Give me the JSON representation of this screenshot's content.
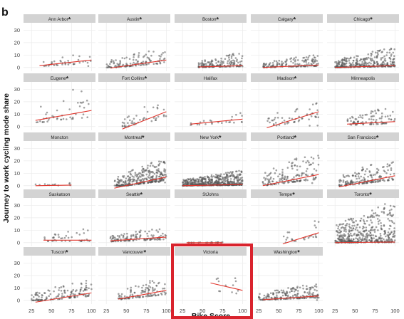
{
  "panel_label": "b",
  "ylabel": "Journey to work cycling mode share",
  "xlabel": "Bike Score",
  "x_ticks": [
    "25",
    "50",
    "75",
    "100"
  ],
  "y_ticks": [
    "0",
    "10",
    "20",
    "30"
  ],
  "star_symbol": "*",
  "highlight_color": "#d9232d",
  "fit_line_color": "#e0342b",
  "point_color": "#555555",
  "strip_color": "#d3d3d3",
  "chart_data": {
    "type": "scatter",
    "xlabel": "Bike Score",
    "ylabel": "Journey to work cycling mode share",
    "xlim": [
      15,
      105
    ],
    "ylim": [
      -3,
      36
    ],
    "grid": true,
    "layout_grid": {
      "cols": 5,
      "rows": 5
    },
    "highlighted_panel": "Victoria",
    "panels": [
      {
        "name": "Ann Arbor",
        "star": true,
        "fit": [
          [
            35,
            1.5
          ],
          [
            100,
            6
          ]
        ],
        "x_range": [
          35,
          100
        ],
        "y_max": 10,
        "n": 40
      },
      {
        "name": "Austin",
        "star": true,
        "fit": [
          [
            30,
            -0.5
          ],
          [
            100,
            6
          ]
        ],
        "x_range": [
          25,
          100
        ],
        "y_max": 14,
        "n": 120
      },
      {
        "name": "Boston",
        "star": true,
        "fit": [
          [
            45,
            0.4
          ],
          [
            100,
            1.5
          ]
        ],
        "x_range": [
          45,
          100
        ],
        "y_max": 12,
        "n": 160
      },
      {
        "name": "Calgary",
        "star": true,
        "fit": [
          [
            30,
            0
          ],
          [
            100,
            2
          ]
        ],
        "x_range": [
          30,
          100
        ],
        "y_max": 10,
        "n": 150
      },
      {
        "name": "Chicago",
        "star": true,
        "fit": [
          [
            25,
            0
          ],
          [
            100,
            1.5
          ]
        ],
        "x_range": [
          25,
          100
        ],
        "y_max": 16,
        "n": 320
      },
      {
        "name": "Eugene",
        "star": true,
        "fit": [
          [
            30,
            5
          ],
          [
            100,
            13
          ]
        ],
        "x_range": [
          30,
          100
        ],
        "y_max": 30,
        "n": 45
      },
      {
        "name": "Fort Collins",
        "star": true,
        "fit": [
          [
            45,
            -2
          ],
          [
            100,
            12
          ]
        ],
        "x_range": [
          45,
          100
        ],
        "y_max": 20,
        "n": 45
      },
      {
        "name": "Halifax",
        "star": false,
        "fit": [
          [
            35,
            2
          ],
          [
            100,
            6
          ]
        ],
        "x_range": [
          35,
          100
        ],
        "y_max": 11,
        "n": 25
      },
      {
        "name": "Madison",
        "star": true,
        "fit": [
          [
            35,
            -1
          ],
          [
            100,
            12
          ]
        ],
        "x_range": [
          35,
          100
        ],
        "y_max": 20,
        "n": 55
      },
      {
        "name": "Minneapolis",
        "star": false,
        "fit": [
          [
            40,
            2
          ],
          [
            100,
            4
          ]
        ],
        "x_range": [
          40,
          100
        ],
        "y_max": 15,
        "n": 90
      },
      {
        "name": "Moncton",
        "star": false,
        "fit": [
          [
            30,
            0
          ],
          [
            75,
            0.5
          ]
        ],
        "x_range": [
          30,
          75
        ],
        "y_max": 3,
        "n": 12
      },
      {
        "name": "Montreal",
        "star": true,
        "fit": [
          [
            35,
            -2
          ],
          [
            100,
            7
          ]
        ],
        "x_range": [
          35,
          100
        ],
        "y_max": 20,
        "n": 300
      },
      {
        "name": "New York",
        "star": true,
        "fit": [
          [
            25,
            0
          ],
          [
            100,
            1
          ]
        ],
        "x_range": [
          25,
          100
        ],
        "y_max": 12,
        "n": 520
      },
      {
        "name": "Portland",
        "star": true,
        "fit": [
          [
            30,
            0
          ],
          [
            100,
            9
          ]
        ],
        "x_range": [
          30,
          100
        ],
        "y_max": 25,
        "n": 150
      },
      {
        "name": "San Francisco",
        "star": true,
        "fit": [
          [
            30,
            -1
          ],
          [
            100,
            8
          ]
        ],
        "x_range": [
          30,
          100
        ],
        "y_max": 20,
        "n": 170
      },
      {
        "name": "Saskatoon",
        "star": false,
        "fit": [
          [
            40,
            2
          ],
          [
            100,
            2
          ]
        ],
        "x_range": [
          40,
          100
        ],
        "y_max": 11,
        "n": 40
      },
      {
        "name": "Seattle",
        "star": true,
        "fit": [
          [
            30,
            1.5
          ],
          [
            100,
            4.5
          ]
        ],
        "x_range": [
          30,
          100
        ],
        "y_max": 11,
        "n": 120
      },
      {
        "name": "StJohns",
        "star": false,
        "fit": [
          [
            30,
            0
          ],
          [
            75,
            0
          ]
        ],
        "x_range": [
          30,
          75
        ],
        "y_max": 0.5,
        "n": 20
      },
      {
        "name": "Tempe",
        "star": true,
        "fit": [
          [
            55,
            -1
          ],
          [
            100,
            8
          ]
        ],
        "x_range": [
          55,
          100
        ],
        "y_max": 18,
        "n": 25
      },
      {
        "name": "Toronto",
        "star": true,
        "fit": [
          [
            25,
            0
          ],
          [
            100,
            0.5
          ]
        ],
        "x_range": [
          25,
          100
        ],
        "y_max": 35,
        "n": 420
      },
      {
        "name": "Tuscon",
        "star": true,
        "fit": [
          [
            30,
            -1.5
          ],
          [
            100,
            6
          ]
        ],
        "x_range": [
          25,
          100
        ],
        "y_max": 16,
        "n": 140
      },
      {
        "name": "Vancouver",
        "star": true,
        "fit": [
          [
            40,
            1
          ],
          [
            100,
            8
          ]
        ],
        "x_range": [
          40,
          100
        ],
        "y_max": 16,
        "n": 110
      },
      {
        "name": "Victoria",
        "star": false,
        "fit": [
          [
            60,
            14
          ],
          [
            100,
            8
          ]
        ],
        "x_range": [
          60,
          100
        ],
        "y_max": 22,
        "n": 12
      },
      {
        "name": "Washington",
        "star": true,
        "fit": [
          [
            30,
            0.5
          ],
          [
            100,
            3.5
          ]
        ],
        "x_range": [
          25,
          100
        ],
        "y_max": 13,
        "n": 190
      }
    ]
  }
}
